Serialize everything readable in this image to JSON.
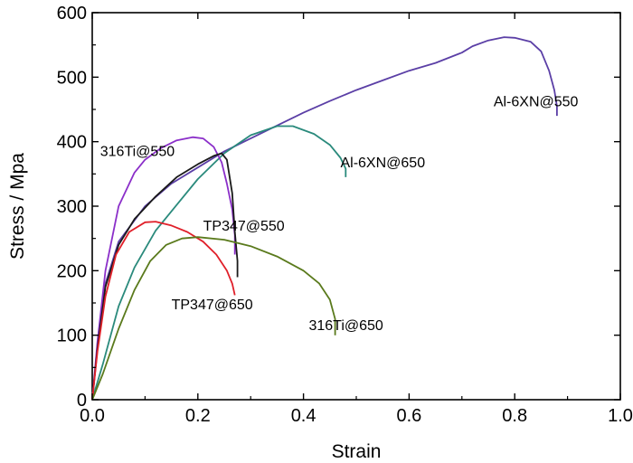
{
  "chart_data": {
    "type": "line",
    "title": "",
    "xlabel": "Strain",
    "ylabel": "Stress / Mpa",
    "xlim": [
      0,
      1.0
    ],
    "ylim": [
      0,
      600
    ],
    "grid": false,
    "x_ticks": [
      "0.0",
      "0.2",
      "0.4",
      "0.6",
      "0.8",
      "1.0"
    ],
    "y_ticks": [
      "0",
      "100",
      "200",
      "300",
      "400",
      "500",
      "600"
    ],
    "series": [
      {
        "name": "Al-6XN@550",
        "color": "#5b3fa6",
        "points": [
          [
            0,
            0
          ],
          [
            0.01,
            80
          ],
          [
            0.025,
            180
          ],
          [
            0.05,
            245
          ],
          [
            0.1,
            300
          ],
          [
            0.15,
            335
          ],
          [
            0.2,
            360
          ],
          [
            0.25,
            385
          ],
          [
            0.3,
            405
          ],
          [
            0.35,
            425
          ],
          [
            0.4,
            445
          ],
          [
            0.45,
            463
          ],
          [
            0.5,
            480
          ],
          [
            0.55,
            495
          ],
          [
            0.6,
            510
          ],
          [
            0.65,
            522
          ],
          [
            0.7,
            538
          ],
          [
            0.72,
            548
          ],
          [
            0.75,
            557
          ],
          [
            0.78,
            562
          ],
          [
            0.8,
            561
          ],
          [
            0.83,
            555
          ],
          [
            0.85,
            540
          ],
          [
            0.865,
            510
          ],
          [
            0.875,
            480
          ],
          [
            0.88,
            455
          ],
          [
            0.88,
            440
          ]
        ]
      },
      {
        "name": "Al-6XN@650",
        "color": "#2a8a7c",
        "points": [
          [
            0,
            0
          ],
          [
            0.02,
            55
          ],
          [
            0.05,
            145
          ],
          [
            0.08,
            205
          ],
          [
            0.12,
            262
          ],
          [
            0.16,
            302
          ],
          [
            0.2,
            342
          ],
          [
            0.25,
            382
          ],
          [
            0.3,
            410
          ],
          [
            0.35,
            424
          ],
          [
            0.38,
            424
          ],
          [
            0.42,
            412
          ],
          [
            0.45,
            395
          ],
          [
            0.47,
            375
          ],
          [
            0.48,
            358
          ],
          [
            0.48,
            345
          ]
        ]
      },
      {
        "name": "316Ti@550",
        "color": "#8b2fc9",
        "points": [
          [
            0,
            0
          ],
          [
            0.01,
            90
          ],
          [
            0.025,
            200
          ],
          [
            0.05,
            300
          ],
          [
            0.08,
            352
          ],
          [
            0.1,
            372
          ],
          [
            0.13,
            390
          ],
          [
            0.16,
            402
          ],
          [
            0.19,
            407
          ],
          [
            0.21,
            405
          ],
          [
            0.23,
            392
          ],
          [
            0.245,
            368
          ],
          [
            0.255,
            335
          ],
          [
            0.265,
            295
          ],
          [
            0.27,
            255
          ],
          [
            0.27,
            225
          ]
        ]
      },
      {
        "name": "TP347@550",
        "color": "#1a1a1a",
        "points": [
          [
            0,
            0
          ],
          [
            0.01,
            80
          ],
          [
            0.025,
            175
          ],
          [
            0.05,
            240
          ],
          [
            0.08,
            280
          ],
          [
            0.12,
            315
          ],
          [
            0.16,
            345
          ],
          [
            0.2,
            365
          ],
          [
            0.23,
            378
          ],
          [
            0.245,
            382
          ],
          [
            0.255,
            372
          ],
          [
            0.265,
            320
          ],
          [
            0.27,
            260
          ],
          [
            0.275,
            215
          ],
          [
            0.275,
            190
          ]
        ]
      },
      {
        "name": "TP347@650",
        "color": "#e0202a",
        "points": [
          [
            0,
            0
          ],
          [
            0.01,
            75
          ],
          [
            0.025,
            160
          ],
          [
            0.045,
            225
          ],
          [
            0.07,
            260
          ],
          [
            0.1,
            275
          ],
          [
            0.12,
            276
          ],
          [
            0.15,
            270
          ],
          [
            0.18,
            260
          ],
          [
            0.21,
            245
          ],
          [
            0.235,
            225
          ],
          [
            0.255,
            200
          ],
          [
            0.265,
            180
          ],
          [
            0.27,
            162
          ]
        ]
      },
      {
        "name": "316Ti@650",
        "color": "#5a7a1c",
        "points": [
          [
            0,
            0
          ],
          [
            0.02,
            40
          ],
          [
            0.05,
            110
          ],
          [
            0.08,
            170
          ],
          [
            0.11,
            215
          ],
          [
            0.14,
            240
          ],
          [
            0.17,
            250
          ],
          [
            0.2,
            252
          ],
          [
            0.25,
            248
          ],
          [
            0.3,
            238
          ],
          [
            0.35,
            222
          ],
          [
            0.4,
            200
          ],
          [
            0.43,
            180
          ],
          [
            0.45,
            155
          ],
          [
            0.46,
            125
          ],
          [
            0.46,
            100
          ]
        ]
      }
    ],
    "annotations": [
      {
        "text": "Al-6XN@550",
        "x": 0.76,
        "y": 455
      },
      {
        "text": "Al-6XN@650",
        "x": 0.47,
        "y": 360
      },
      {
        "text": "316Ti@550",
        "x": 0.015,
        "y": 378
      },
      {
        "text": "TP347@550",
        "x": 0.21,
        "y": 262
      },
      {
        "text": "TP347@650",
        "x": 0.15,
        "y": 140
      },
      {
        "text": "316Ti@650",
        "x": 0.41,
        "y": 108
      }
    ]
  }
}
